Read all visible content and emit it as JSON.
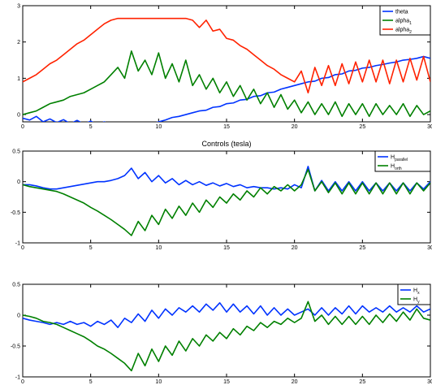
{
  "chart_data": [
    {
      "type": "line",
      "title": "",
      "xlim": [
        0,
        30
      ],
      "ylim": [
        -0.2,
        3
      ],
      "xticks": [
        "0",
        "5",
        "10",
        "15",
        "20",
        "25",
        "30"
      ],
      "yticks": [
        "0",
        "1",
        "2",
        "3"
      ],
      "grid": false,
      "legend_position": "top-right",
      "series": [
        {
          "name": "theta",
          "color": "#0033ff",
          "x": [
            0,
            0.5,
            1,
            1.5,
            2,
            2.5,
            3,
            3.5,
            4,
            4.5,
            5,
            5.5,
            6,
            6.5,
            7,
            7.5,
            8,
            8.5,
            9,
            9.5,
            10,
            10.5,
            11,
            11.5,
            12,
            12.5,
            13,
            13.5,
            14,
            14.5,
            15,
            15.5,
            16,
            16.5,
            17,
            17.5,
            18,
            18.5,
            19,
            19.5,
            20,
            20.5,
            21,
            21.5,
            22,
            22.5,
            23,
            23.5,
            24,
            24.5,
            25,
            25.5,
            26,
            26.5,
            27,
            27.5,
            28,
            28.5,
            29,
            29.5,
            30
          ],
          "y": [
            -0.1,
            -0.15,
            -0.05,
            -0.2,
            -0.12,
            -0.22,
            -0.14,
            -0.25,
            -0.16,
            -0.26,
            -0.18,
            -0.28,
            -0.2,
            -0.3,
            -0.24,
            -0.35,
            -0.38,
            -0.33,
            -0.3,
            -0.25,
            -0.2,
            -0.15,
            -0.08,
            -0.05,
            0.0,
            0.05,
            0.1,
            0.12,
            0.2,
            0.22,
            0.3,
            0.32,
            0.4,
            0.42,
            0.5,
            0.52,
            0.6,
            0.62,
            0.7,
            0.75,
            0.8,
            0.85,
            0.9,
            0.92,
            1.0,
            1.02,
            1.1,
            1.12,
            1.2,
            1.22,
            1.28,
            1.3,
            1.35,
            1.38,
            1.42,
            1.45,
            1.5,
            1.52,
            1.55,
            1.6,
            1.55
          ]
        },
        {
          "name": "alpha 1",
          "color": "#008000",
          "x": [
            0,
            0.5,
            1,
            1.5,
            2,
            2.5,
            3,
            3.5,
            4,
            4.5,
            5,
            5.5,
            6,
            6.5,
            7,
            7.5,
            8,
            8.5,
            9,
            9.5,
            10,
            10.5,
            11,
            11.5,
            12,
            12.5,
            13,
            13.5,
            14,
            14.5,
            15,
            15.5,
            16,
            16.5,
            17,
            17.5,
            18,
            18.5,
            19,
            19.5,
            20,
            20.5,
            21,
            21.5,
            22,
            22.5,
            23,
            23.5,
            24,
            24.5,
            25,
            25.5,
            26,
            26.5,
            27,
            27.5,
            28,
            28.5,
            29,
            29.5,
            30
          ],
          "y": [
            0.0,
            0.05,
            0.1,
            0.2,
            0.3,
            0.35,
            0.4,
            0.5,
            0.55,
            0.6,
            0.7,
            0.8,
            0.9,
            1.1,
            1.3,
            1.0,
            1.75,
            1.2,
            1.5,
            1.1,
            1.7,
            1.0,
            1.4,
            0.9,
            1.5,
            0.8,
            1.1,
            0.7,
            1.0,
            0.6,
            0.9,
            0.5,
            0.8,
            0.4,
            0.7,
            0.3,
            0.6,
            0.2,
            0.55,
            0.15,
            0.4,
            0.05,
            0.35,
            0.0,
            0.3,
            0.0,
            0.35,
            -0.05,
            0.3,
            0.0,
            0.3,
            -0.05,
            0.3,
            0.0,
            0.25,
            0.0,
            0.3,
            -0.05,
            0.25,
            0.0,
            0.1
          ]
        },
        {
          "name": "alpha 2",
          "color": "#ff2200",
          "x": [
            0,
            0.5,
            1,
            1.5,
            2,
            2.5,
            3,
            3.5,
            4,
            4.5,
            5,
            5.5,
            6,
            6.5,
            7,
            7.5,
            8,
            8.5,
            9,
            9.5,
            10,
            10.5,
            11,
            11.5,
            12,
            12.5,
            13,
            13.5,
            14,
            14.5,
            15,
            15.5,
            16,
            16.5,
            17,
            17.5,
            18,
            18.5,
            19,
            19.5,
            20,
            20.5,
            21,
            21.5,
            22,
            22.5,
            23,
            23.5,
            24,
            24.5,
            25,
            25.5,
            26,
            26.5,
            27,
            27.5,
            28,
            28.5,
            29,
            29.5,
            30
          ],
          "y": [
            0.9,
            1.0,
            1.1,
            1.25,
            1.4,
            1.5,
            1.65,
            1.8,
            1.95,
            2.05,
            2.2,
            2.35,
            2.5,
            2.6,
            2.65,
            2.65,
            2.65,
            2.65,
            2.65,
            2.65,
            2.65,
            2.65,
            2.65,
            2.65,
            2.65,
            2.6,
            2.4,
            2.6,
            2.3,
            2.35,
            2.1,
            2.05,
            1.9,
            1.8,
            1.65,
            1.5,
            1.35,
            1.25,
            1.1,
            1.0,
            0.9,
            1.2,
            0.6,
            1.3,
            0.8,
            1.35,
            0.8,
            1.4,
            0.85,
            1.45,
            0.9,
            1.5,
            0.9,
            1.5,
            0.85,
            1.5,
            0.9,
            1.55,
            0.95,
            1.6,
            0.9
          ]
        }
      ]
    },
    {
      "type": "line",
      "title": "Controls (tesla)",
      "xlim": [
        0,
        30
      ],
      "ylim": [
        -1,
        0.5
      ],
      "xticks": [
        "0",
        "5",
        "10",
        "15",
        "20",
        "25",
        "30"
      ],
      "yticks": [
        "-1",
        "-0.5",
        "0",
        "0.5"
      ],
      "grid": false,
      "legend_position": "top-right",
      "series": [
        {
          "name": "H parallel",
          "color": "#0033ff",
          "x": [
            0,
            0.5,
            1,
            1.5,
            2,
            2.5,
            3,
            3.5,
            4,
            4.5,
            5,
            5.5,
            6,
            6.5,
            7,
            7.5,
            8,
            8.5,
            9,
            9.5,
            10,
            10.5,
            11,
            11.5,
            12,
            12.5,
            13,
            13.5,
            14,
            14.5,
            15,
            15.5,
            16,
            16.5,
            17,
            17.5,
            18,
            18.5,
            19,
            19.5,
            20,
            20.5,
            21,
            21.5,
            22,
            22.5,
            23,
            23.5,
            24,
            24.5,
            25,
            25.5,
            26,
            26.5,
            27,
            27.5,
            28,
            28.5,
            29,
            29.5,
            30
          ],
          "y": [
            -0.05,
            -0.05,
            -0.07,
            -0.1,
            -0.12,
            -0.12,
            -0.1,
            -0.08,
            -0.06,
            -0.04,
            -0.02,
            0.0,
            0.0,
            0.02,
            0.05,
            0.1,
            0.22,
            0.05,
            0.15,
            0.0,
            0.1,
            -0.02,
            0.05,
            -0.05,
            0.02,
            -0.05,
            0.0,
            -0.06,
            -0.02,
            -0.07,
            -0.03,
            -0.08,
            -0.05,
            -0.1,
            -0.08,
            -0.1,
            -0.1,
            -0.12,
            -0.1,
            -0.12,
            -0.05,
            -0.1,
            0.25,
            -0.15,
            0.02,
            -0.15,
            0.0,
            -0.15,
            0.0,
            -0.15,
            0.0,
            -0.15,
            -0.02,
            -0.15,
            -0.02,
            -0.15,
            -0.02,
            -0.15,
            -0.02,
            -0.12,
            0.0
          ]
        },
        {
          "name": "H orth",
          "color": "#008000",
          "x": [
            0,
            0.5,
            1,
            1.5,
            2,
            2.5,
            3,
            3.5,
            4,
            4.5,
            5,
            5.5,
            6,
            6.5,
            7,
            7.5,
            8,
            8.5,
            9,
            9.5,
            10,
            10.5,
            11,
            11.5,
            12,
            12.5,
            13,
            13.5,
            14,
            14.5,
            15,
            15.5,
            16,
            16.5,
            17,
            17.5,
            18,
            18.5,
            19,
            19.5,
            20,
            20.5,
            21,
            21.5,
            22,
            22.5,
            23,
            23.5,
            24,
            24.5,
            25,
            25.5,
            26,
            26.5,
            27,
            27.5,
            28,
            28.5,
            29,
            29.5,
            30
          ],
          "y": [
            -0.05,
            -0.08,
            -0.1,
            -0.12,
            -0.14,
            -0.16,
            -0.2,
            -0.25,
            -0.3,
            -0.35,
            -0.42,
            -0.48,
            -0.55,
            -0.62,
            -0.7,
            -0.78,
            -0.88,
            -0.65,
            -0.8,
            -0.55,
            -0.7,
            -0.45,
            -0.6,
            -0.4,
            -0.55,
            -0.35,
            -0.5,
            -0.3,
            -0.42,
            -0.25,
            -0.35,
            -0.2,
            -0.3,
            -0.15,
            -0.25,
            -0.1,
            -0.2,
            -0.08,
            -0.15,
            -0.05,
            -0.15,
            -0.05,
            0.2,
            -0.15,
            0.0,
            -0.18,
            -0.02,
            -0.2,
            -0.02,
            -0.2,
            -0.02,
            -0.2,
            -0.02,
            -0.2,
            -0.02,
            -0.2,
            -0.02,
            -0.2,
            -0.02,
            -0.15,
            -0.02
          ]
        }
      ]
    },
    {
      "type": "line",
      "title": "",
      "xlim": [
        0,
        30
      ],
      "ylim": [
        -1,
        0.5
      ],
      "xticks": [
        "0",
        "5",
        "10",
        "15",
        "20",
        "25",
        "30"
      ],
      "yticks": [
        "-1",
        "-0.5",
        "0",
        "0.5"
      ],
      "grid": false,
      "legend_position": "top-right",
      "series": [
        {
          "name": "H x",
          "color": "#0033ff",
          "x": [
            0,
            0.5,
            1,
            1.5,
            2,
            2.5,
            3,
            3.5,
            4,
            4.5,
            5,
            5.5,
            6,
            6.5,
            7,
            7.5,
            8,
            8.5,
            9,
            9.5,
            10,
            10.5,
            11,
            11.5,
            12,
            12.5,
            13,
            13.5,
            14,
            14.5,
            15,
            15.5,
            16,
            16.5,
            17,
            17.5,
            18,
            18.5,
            19,
            19.5,
            20,
            20.5,
            21,
            21.5,
            22,
            22.5,
            23,
            23.5,
            24,
            24.5,
            25,
            25.5,
            26,
            26.5,
            27,
            27.5,
            28,
            28.5,
            29,
            29.5,
            30
          ],
          "y": [
            -0.05,
            -0.08,
            -0.1,
            -0.12,
            -0.15,
            -0.12,
            -0.15,
            -0.1,
            -0.15,
            -0.12,
            -0.18,
            -0.1,
            -0.15,
            -0.08,
            -0.2,
            -0.05,
            -0.12,
            0.02,
            -0.1,
            0.08,
            -0.05,
            0.1,
            0.0,
            0.12,
            0.05,
            0.15,
            0.05,
            0.18,
            0.08,
            0.2,
            0.05,
            0.18,
            0.05,
            0.15,
            0.02,
            0.15,
            0.0,
            0.12,
            0.0,
            0.1,
            0.0,
            0.05,
            0.1,
            0.0,
            0.12,
            0.0,
            0.12,
            0.02,
            0.15,
            0.02,
            0.15,
            0.05,
            0.12,
            0.05,
            0.15,
            0.05,
            0.12,
            0.05,
            0.15,
            0.05,
            0.1
          ]
        },
        {
          "name": "H y",
          "color": "#008000",
          "x": [
            0,
            0.5,
            1,
            1.5,
            2,
            2.5,
            3,
            3.5,
            4,
            4.5,
            5,
            5.5,
            6,
            6.5,
            7,
            7.5,
            8,
            8.5,
            9,
            9.5,
            10,
            10.5,
            11,
            11.5,
            12,
            12.5,
            13,
            13.5,
            14,
            14.5,
            15,
            15.5,
            16,
            16.5,
            17,
            17.5,
            18,
            18.5,
            19,
            19.5,
            20,
            20.5,
            21,
            21.5,
            22,
            22.5,
            23,
            23.5,
            24,
            24.5,
            25,
            25.5,
            26,
            26.5,
            27,
            27.5,
            28,
            28.5,
            29,
            29.5,
            30
          ],
          "y": [
            0.0,
            -0.02,
            -0.05,
            -0.1,
            -0.12,
            -0.15,
            -0.2,
            -0.25,
            -0.3,
            -0.35,
            -0.42,
            -0.5,
            -0.55,
            -0.62,
            -0.7,
            -0.78,
            -0.9,
            -0.62,
            -0.82,
            -0.55,
            -0.75,
            -0.5,
            -0.65,
            -0.42,
            -0.58,
            -0.38,
            -0.5,
            -0.32,
            -0.42,
            -0.28,
            -0.38,
            -0.22,
            -0.32,
            -0.18,
            -0.25,
            -0.12,
            -0.2,
            -0.1,
            -0.15,
            -0.05,
            -0.12,
            -0.05,
            0.22,
            -0.1,
            0.0,
            -0.15,
            -0.02,
            -0.15,
            -0.02,
            -0.15,
            -0.02,
            -0.15,
            0.0,
            -0.12,
            0.02,
            -0.1,
            0.05,
            -0.08,
            0.1,
            -0.05,
            -0.08
          ]
        }
      ]
    }
  ],
  "legends": [
    [
      {
        "main": "theta",
        "sub": ""
      },
      {
        "main": "alpha",
        "sub": "1"
      },
      {
        "main": "alpha",
        "sub": "2"
      }
    ],
    [
      {
        "main": "H",
        "sub": "parallel"
      },
      {
        "main": "H",
        "sub": "orth"
      }
    ],
    [
      {
        "main": "H",
        "sub": "x"
      },
      {
        "main": "H",
        "sub": "y"
      }
    ]
  ]
}
